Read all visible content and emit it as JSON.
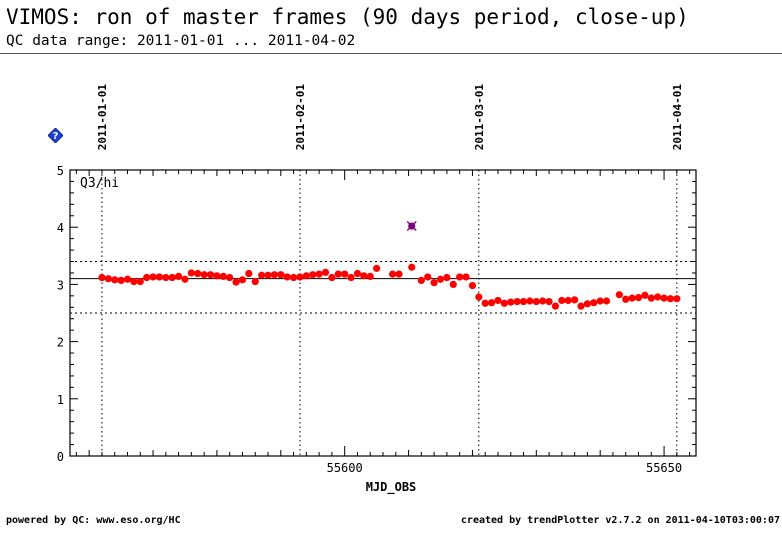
{
  "header": {
    "title": "VIMOS: ron of master frames (90 days period, close-up)",
    "subtitle": "QC data range: 2011-01-01 ... 2011-04-02"
  },
  "footer": {
    "left": "powered by QC: www.eso.org/HC",
    "right": "created by trendPlotter v2.7.2 on 2011-04-10T03:00:07"
  },
  "help_icon": {
    "name": "help-diamond-icon",
    "glyph": "?",
    "color": "#1a3fd6"
  },
  "chart_data": {
    "type": "scatter",
    "title": "",
    "xlabel": "MJD_OBS",
    "ylabel": "",
    "panel_label": "Q3/hi",
    "xlim": [
      55557,
      55655
    ],
    "ylim": [
      0,
      5
    ],
    "xticks": [
      55600,
      55650
    ],
    "yticks": [
      0,
      1,
      2,
      3,
      4,
      5
    ],
    "date_markers": [
      {
        "label": "2011-01-01",
        "mjd": 55562
      },
      {
        "label": "2011-02-01",
        "mjd": 55593
      },
      {
        "label": "2011-03-01",
        "mjd": 55621
      },
      {
        "label": "2011-04-01",
        "mjd": 55652
      }
    ],
    "reference_lines": {
      "median": 3.1,
      "upper": 3.4,
      "lower": 2.5
    },
    "colors": {
      "points": "#ff0000",
      "outlier": "#800080",
      "lines": "#000000"
    },
    "series": [
      {
        "values": [
          [
            55562.0,
            3.12
          ],
          [
            55563.0,
            3.1
          ],
          [
            55564.0,
            3.08
          ],
          [
            55565.0,
            3.07
          ],
          [
            55566.0,
            3.09
          ],
          [
            55567.0,
            3.05
          ],
          [
            55568.0,
            3.05
          ],
          [
            55569.0,
            3.12
          ],
          [
            55570.0,
            3.13
          ],
          [
            55571.0,
            3.13
          ],
          [
            55572.0,
            3.12
          ],
          [
            55573.0,
            3.12
          ],
          [
            55574.0,
            3.14
          ],
          [
            55575.0,
            3.09
          ],
          [
            55576.0,
            3.2
          ],
          [
            55577.0,
            3.19
          ],
          [
            55578.0,
            3.17
          ],
          [
            55579.0,
            3.17
          ],
          [
            55580.0,
            3.15
          ],
          [
            55581.0,
            3.14
          ],
          [
            55582.0,
            3.12
          ],
          [
            55583.0,
            3.04
          ],
          [
            55584.0,
            3.08
          ],
          [
            55585.0,
            3.19
          ],
          [
            55586.0,
            3.05
          ],
          [
            55587.0,
            3.16
          ],
          [
            55588.0,
            3.16
          ],
          [
            55589.0,
            3.17
          ],
          [
            55590.0,
            3.17
          ],
          [
            55591.0,
            3.13
          ],
          [
            55592.0,
            3.12
          ],
          [
            55593.0,
            3.13
          ],
          [
            55594.0,
            3.15
          ],
          [
            55595.0,
            3.17
          ],
          [
            55596.0,
            3.18
          ],
          [
            55597.0,
            3.21
          ],
          [
            55598.0,
            3.12
          ],
          [
            55599.0,
            3.18
          ],
          [
            55600.0,
            3.18
          ],
          [
            55601.0,
            3.12
          ],
          [
            55602.0,
            3.19
          ],
          [
            55603.0,
            3.15
          ],
          [
            55604.0,
            3.14
          ],
          [
            55605.0,
            3.28
          ],
          [
            55607.5,
            3.18
          ],
          [
            55608.5,
            3.18
          ],
          [
            55610.5,
            3.3
          ],
          [
            55612.0,
            3.07
          ],
          [
            55613.0,
            3.13
          ],
          [
            55614.0,
            3.03
          ],
          [
            55615.0,
            3.09
          ],
          [
            55616.0,
            3.12
          ],
          [
            55617.0,
            3.0
          ],
          [
            55618.0,
            3.13
          ],
          [
            55619.0,
            3.13
          ],
          [
            55620.0,
            2.98
          ],
          [
            55621.0,
            2.78
          ],
          [
            55622.0,
            2.67
          ],
          [
            55623.0,
            2.68
          ],
          [
            55624.0,
            2.72
          ],
          [
            55625.0,
            2.67
          ],
          [
            55626.0,
            2.69
          ],
          [
            55627.0,
            2.7
          ],
          [
            55628.0,
            2.7
          ],
          [
            55629.0,
            2.71
          ],
          [
            55630.0,
            2.7
          ],
          [
            55631.0,
            2.71
          ],
          [
            55632.0,
            2.7
          ],
          [
            55633.0,
            2.62
          ],
          [
            55634.0,
            2.72
          ],
          [
            55635.0,
            2.72
          ],
          [
            55636.0,
            2.73
          ],
          [
            55637.0,
            2.62
          ],
          [
            55638.0,
            2.66
          ],
          [
            55639.0,
            2.68
          ],
          [
            55640.0,
            2.71
          ],
          [
            55641.0,
            2.71
          ],
          [
            55643.0,
            2.82
          ],
          [
            55644.0,
            2.74
          ],
          [
            55645.0,
            2.76
          ],
          [
            55646.0,
            2.77
          ],
          [
            55647.0,
            2.81
          ],
          [
            55648.0,
            2.76
          ],
          [
            55649.0,
            2.78
          ],
          [
            55650.0,
            2.76
          ],
          [
            55651.0,
            2.75
          ],
          [
            55652.0,
            2.75
          ]
        ]
      }
    ],
    "outliers": [
      [
        55610.5,
        4.02
      ]
    ]
  }
}
